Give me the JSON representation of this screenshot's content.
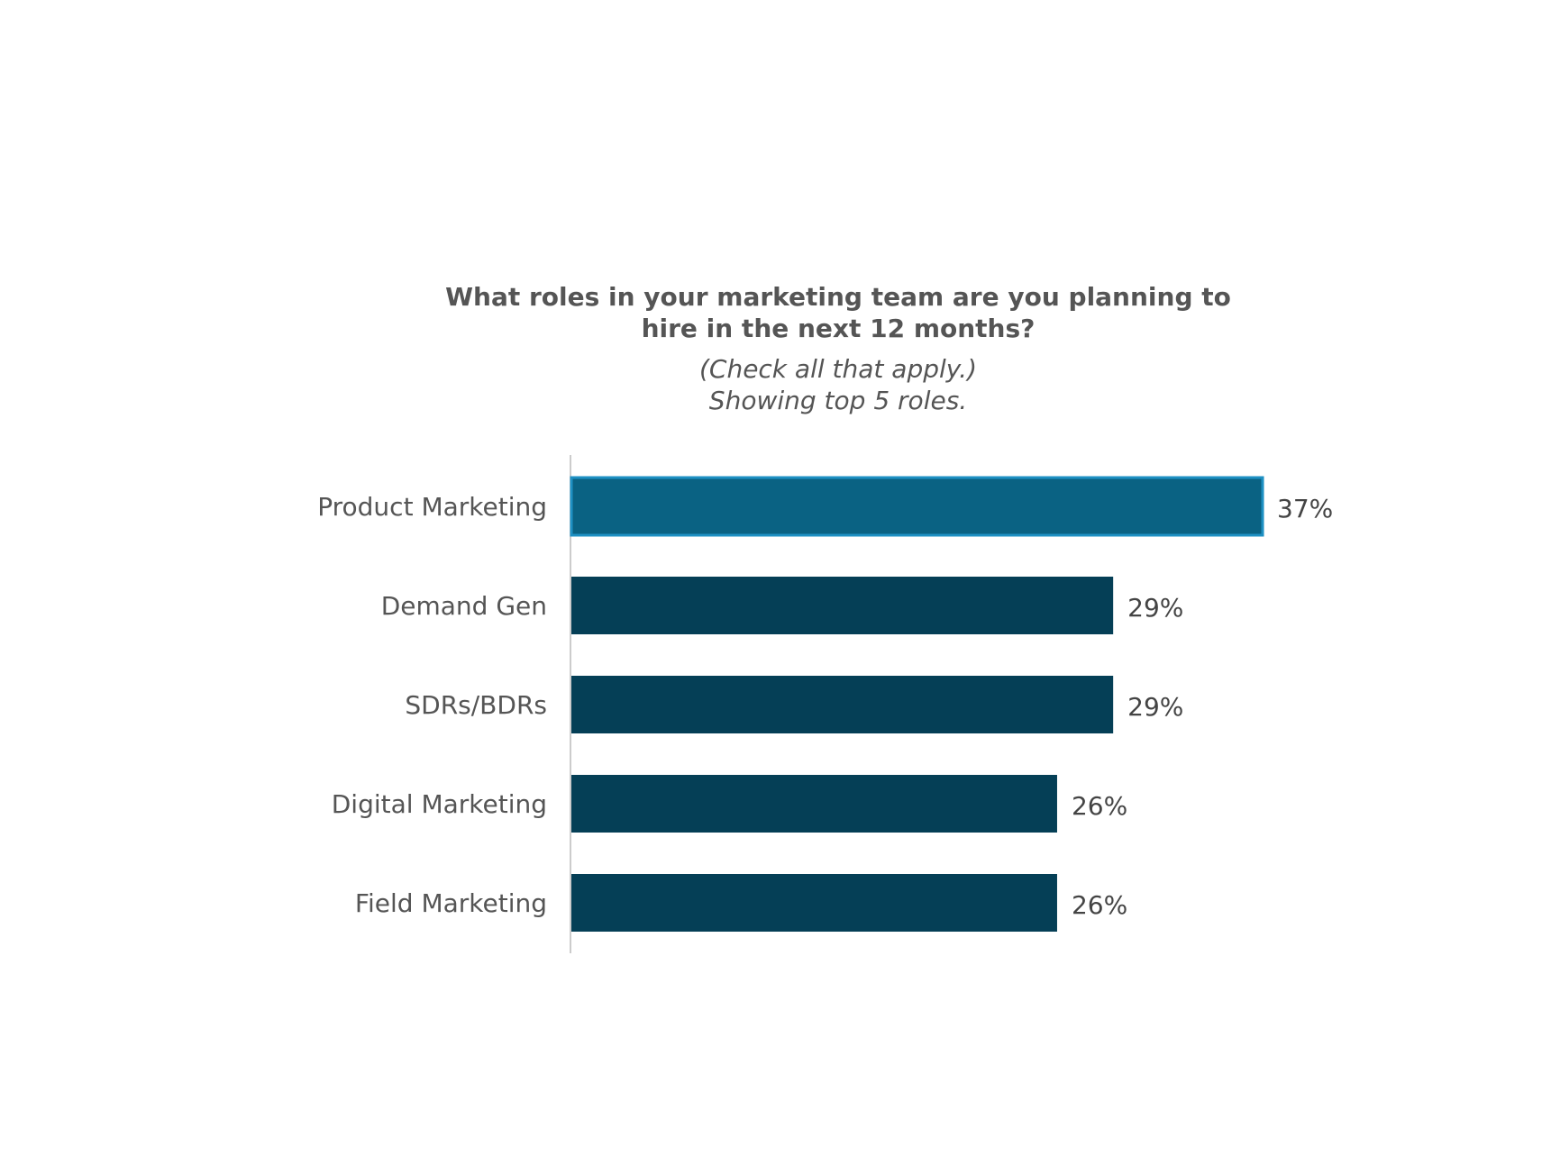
{
  "chart_data": {
    "type": "bar",
    "orientation": "horizontal",
    "title_lines": [
      "What roles in your marketing team are you planning to",
      "hire in the next 12 months?"
    ],
    "subtitle_lines": [
      "(Check all that apply.)",
      "Showing top 5 roles."
    ],
    "categories": [
      "Product Marketing",
      "Demand Gen",
      "SDRs/BDRs",
      "Digital Marketing",
      "Field Marketing"
    ],
    "values": [
      37,
      29,
      29,
      26,
      26
    ],
    "value_labels": [
      "37%",
      "29%",
      "29%",
      "26%",
      "26%"
    ],
    "highlighted_index": 0,
    "xlim": [
      0,
      37
    ],
    "grid": false,
    "legend": "none",
    "colors": {
      "bar": "#053F56",
      "highlight_bar": "#0A6283",
      "highlight_border": "#1E90C3",
      "axis": "#CCCCCC",
      "text": "#555555"
    }
  }
}
